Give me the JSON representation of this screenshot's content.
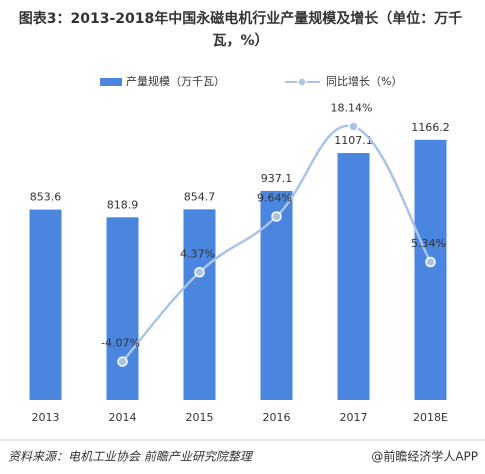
{
  "chart_data": {
    "type": "bar_line",
    "title": "图表3：2013-2018年中国永磁电机行业产量规模及增长（单位：万千瓦，%）",
    "categories": [
      "2013",
      "2014",
      "2015",
      "2016",
      "2017",
      "2018E"
    ],
    "series": [
      {
        "name": "产量规模（万千瓦）",
        "type": "bar",
        "color": "#4a86e0",
        "values": [
          853.6,
          818.9,
          854.7,
          937.1,
          1107.1,
          1166.2
        ]
      },
      {
        "name": "同比增长（%）",
        "type": "line",
        "axis": "y2",
        "color": "#a9c4e8",
        "values": [
          null,
          -4.07,
          4.37,
          9.64,
          18.14,
          5.34
        ],
        "value_labels": [
          null,
          "-4.07%",
          "4.37%",
          "9.64%",
          "18.14%",
          "5.34%"
        ]
      }
    ],
    "ylim": [
      0,
      1300
    ],
    "y2lim": [
      -7.7,
      19.7
    ],
    "legend": "top",
    "source": "资料来源：电机工业协会  前瞻产业研究院整理",
    "brand": "@前瞻经济学人APP"
  }
}
